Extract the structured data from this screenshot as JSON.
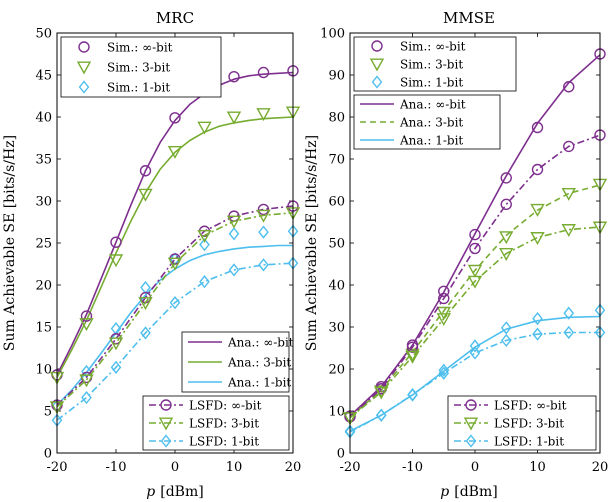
{
  "colors": {
    "purple": "#7E2F8E",
    "green": "#77AC30",
    "blue": "#4DBEEE"
  },
  "shared": {
    "ylabel": "Sum Achievable SE [bits/s/Hz]",
    "xlabel_var": "p",
    "xlabel_unit": "[dBm]"
  },
  "chart_data": [
    {
      "type": "line",
      "title": "MRC",
      "xlabel": "p [dBm]",
      "ylabel": "Sum Achievable SE [bits/s/Hz]",
      "xlim": [
        -20,
        20
      ],
      "ylim": [
        0,
        50
      ],
      "xticks": [
        -20,
        -10,
        0,
        10,
        20
      ],
      "yticks": [
        0,
        5,
        10,
        15,
        20,
        25,
        30,
        35,
        40,
        45,
        50
      ],
      "legend_upper": [
        "Sim.: ∞-bit",
        "Sim.: 3-bit",
        "Sim.: 1-bit"
      ],
      "legend_lower": [
        "Ana.: ∞-bit",
        "Ana.: 3-bit",
        "Ana.: 1-bit"
      ],
      "legend_lsfd": [
        "LSFD: ∞-bit",
        "LSFD: 3-bit",
        "LSFD: 1-bit"
      ],
      "series": [
        {
          "name": "Ana.: ∞-bit",
          "color": "purple",
          "dash": "solid",
          "marker": "none",
          "x": [
            -20,
            -17.5,
            -15,
            -12.5,
            -10,
            -7.5,
            -5,
            -2.5,
            0,
            2.5,
            5,
            7.5,
            10,
            12.5,
            15,
            17.5,
            20
          ],
          "y": [
            9.3,
            12.8,
            16.5,
            20.8,
            25.1,
            29.5,
            33.6,
            37.0,
            39.6,
            41.5,
            42.8,
            43.8,
            44.5,
            44.9,
            45.1,
            45.2,
            45.3
          ]
        },
        {
          "name": "Ana.: 3-bit",
          "color": "green",
          "dash": "solid",
          "marker": "none",
          "x": [
            -20,
            -17.5,
            -15,
            -12.5,
            -10,
            -7.5,
            -5,
            -2.5,
            0,
            2.5,
            5,
            7.5,
            10,
            12.5,
            15,
            17.5,
            20
          ],
          "y": [
            9.0,
            12.3,
            15.8,
            19.8,
            23.8,
            27.6,
            31.0,
            33.8,
            35.8,
            37.2,
            38.2,
            38.9,
            39.3,
            39.6,
            39.8,
            39.9,
            40.0
          ]
        },
        {
          "name": "Ana.: 1-bit",
          "color": "blue",
          "dash": "solid",
          "marker": "none",
          "x": [
            -20,
            -17.5,
            -15,
            -12.5,
            -10,
            -7.5,
            -5,
            -2.5,
            0,
            2.5,
            5,
            7.5,
            10,
            12.5,
            15,
            17.5,
            20
          ],
          "y": [
            5.7,
            7.5,
            9.6,
            11.9,
            14.3,
            16.7,
            18.8,
            20.6,
            21.9,
            22.9,
            23.6,
            24.0,
            24.3,
            24.5,
            24.6,
            24.7,
            24.7
          ]
        },
        {
          "name": "Sim.: ∞-bit",
          "color": "purple",
          "dash": "none",
          "marker": "circle",
          "x": [
            -20,
            -15,
            -10,
            -5,
            0,
            5,
            10,
            15,
            20
          ],
          "y": [
            9.3,
            16.3,
            25.1,
            33.6,
            39.9,
            43.3,
            44.8,
            45.3,
            45.5
          ]
        },
        {
          "name": "Sim.: 3-bit",
          "color": "green",
          "dash": "none",
          "marker": "triangle",
          "x": [
            -20,
            -15,
            -10,
            -5,
            0,
            5,
            10,
            15,
            20
          ],
          "y": [
            9.0,
            15.4,
            23.0,
            30.8,
            35.9,
            38.8,
            40.0,
            40.4,
            40.6
          ]
        },
        {
          "name": "Sim.: 1-bit",
          "color": "blue",
          "dash": "none",
          "marker": "diamond",
          "x": [
            -20,
            -15,
            -10,
            -5,
            0,
            5,
            10,
            15,
            20
          ],
          "y": [
            5.6,
            9.7,
            14.8,
            19.7,
            23.1,
            24.8,
            26.1,
            26.3,
            26.4
          ]
        },
        {
          "name": "LSFD: ∞-bit",
          "color": "purple",
          "dash": "dashdot",
          "marker": "circle",
          "x": [
            -20,
            -15,
            -10,
            -5,
            0,
            5,
            10,
            15,
            20
          ],
          "y": [
            5.7,
            9.0,
            13.6,
            18.5,
            23.1,
            26.4,
            28.2,
            29.0,
            29.4
          ]
        },
        {
          "name": "LSFD: 3-bit",
          "color": "green",
          "dash": "dashdot",
          "marker": "triangle",
          "x": [
            -20,
            -15,
            -10,
            -5,
            0,
            5,
            10,
            15,
            20
          ],
          "y": [
            5.5,
            8.7,
            13.1,
            17.9,
            22.6,
            25.9,
            27.6,
            28.3,
            28.6
          ]
        },
        {
          "name": "LSFD: 1-bit",
          "color": "blue",
          "dash": "dashdot",
          "marker": "diamond",
          "x": [
            -20,
            -15,
            -10,
            -5,
            0,
            5,
            10,
            15,
            20
          ],
          "y": [
            3.9,
            6.6,
            10.2,
            14.3,
            17.9,
            20.4,
            21.8,
            22.4,
            22.6
          ]
        }
      ]
    },
    {
      "type": "line",
      "title": "MMSE",
      "xlabel": "p [dBm]",
      "ylabel": "Sum Achievable SE [bits/s/Hz]",
      "xlim": [
        -20,
        20
      ],
      "ylim": [
        0,
        100
      ],
      "xticks": [
        -20,
        -10,
        0,
        10,
        20
      ],
      "yticks": [
        0,
        10,
        20,
        30,
        40,
        50,
        60,
        70,
        80,
        90,
        100
      ],
      "legend_upper": [
        "Sim.: ∞-bit",
        "Sim.: 3-bit",
        "Sim.: 1-bit"
      ],
      "legend_lower": [
        "Ana.: ∞-bit",
        "Ana.: 3-bit",
        "Ana.: 1-bit"
      ],
      "legend_lsfd": [
        "LSFD: ∞-bit",
        "LSFD: 3-bit",
        "LSFD: 1-bit"
      ],
      "series": [
        {
          "name": "Ana.: ∞-bit",
          "color": "purple",
          "dash": "solid",
          "marker": "none",
          "x": [
            -20,
            -15,
            -10,
            -5,
            0,
            5,
            10,
            15,
            20
          ],
          "y": [
            8.8,
            15.8,
            25.7,
            38.3,
            52.2,
            66.0,
            78.5,
            88.2,
            94.8
          ]
        },
        {
          "name": "Ana.: 3-bit",
          "color": "green",
          "dash": "dashed",
          "marker": "none",
          "x": [
            -20,
            -15,
            -10,
            -5,
            0,
            5,
            10,
            15,
            20
          ],
          "y": [
            8.5,
            15.0,
            24.0,
            33.8,
            43.5,
            51.8,
            57.8,
            61.8,
            63.8
          ]
        },
        {
          "name": "Ana.: 1-bit",
          "color": "blue",
          "dash": "solid",
          "marker": "none",
          "x": [
            -20,
            -15,
            -10,
            -5,
            0,
            5,
            10,
            15,
            20
          ],
          "y": [
            5.2,
            9.0,
            13.8,
            19.5,
            25.2,
            29.5,
            31.5,
            32.3,
            32.5
          ]
        },
        {
          "name": "Sim.: ∞-bit",
          "color": "purple",
          "dash": "none",
          "marker": "circle",
          "x": [
            -20,
            -15,
            -10,
            -5,
            0,
            5,
            10,
            15,
            20
          ],
          "y": [
            8.8,
            15.8,
            25.7,
            38.5,
            52.0,
            65.5,
            77.5,
            87.2,
            95.0
          ]
        },
        {
          "name": "Sim.: 3-bit",
          "color": "green",
          "dash": "none",
          "marker": "triangle",
          "x": [
            -20,
            -15,
            -10,
            -5,
            0,
            5,
            10,
            15,
            20
          ],
          "y": [
            8.4,
            14.8,
            23.5,
            33.5,
            43.5,
            51.5,
            58.0,
            61.8,
            64.0
          ]
        },
        {
          "name": "Sim.: 1-bit",
          "color": "blue",
          "dash": "none",
          "marker": "diamond",
          "x": [
            -20,
            -15,
            -10,
            -5,
            0,
            5,
            10,
            15,
            20
          ],
          "y": [
            5.2,
            9.0,
            13.8,
            19.7,
            25.5,
            29.8,
            32.0,
            33.3,
            34.0
          ]
        },
        {
          "name": "LSFD: ∞-bit",
          "color": "purple",
          "dash": "dashdot",
          "marker": "circle",
          "x": [
            -20,
            -15,
            -10,
            -5,
            0,
            5,
            10,
            15,
            20
          ],
          "y": [
            8.6,
            15.3,
            25.2,
            36.8,
            48.7,
            59.2,
            67.5,
            73.0,
            75.7
          ]
        },
        {
          "name": "LSFD: 3-bit",
          "color": "green",
          "dash": "dashdot",
          "marker": "triangle",
          "x": [
            -20,
            -15,
            -10,
            -5,
            0,
            5,
            10,
            15,
            20
          ],
          "y": [
            8.4,
            14.5,
            23.0,
            32.0,
            40.9,
            47.5,
            51.3,
            53.2,
            53.8
          ]
        },
        {
          "name": "LSFD: 1-bit",
          "color": "blue",
          "dash": "dashdot",
          "marker": "diamond",
          "x": [
            -20,
            -15,
            -10,
            -5,
            0,
            5,
            10,
            15,
            20
          ],
          "y": [
            5.0,
            9.0,
            13.9,
            19.0,
            23.8,
            26.8,
            28.3,
            28.7,
            28.7
          ]
        }
      ]
    }
  ]
}
